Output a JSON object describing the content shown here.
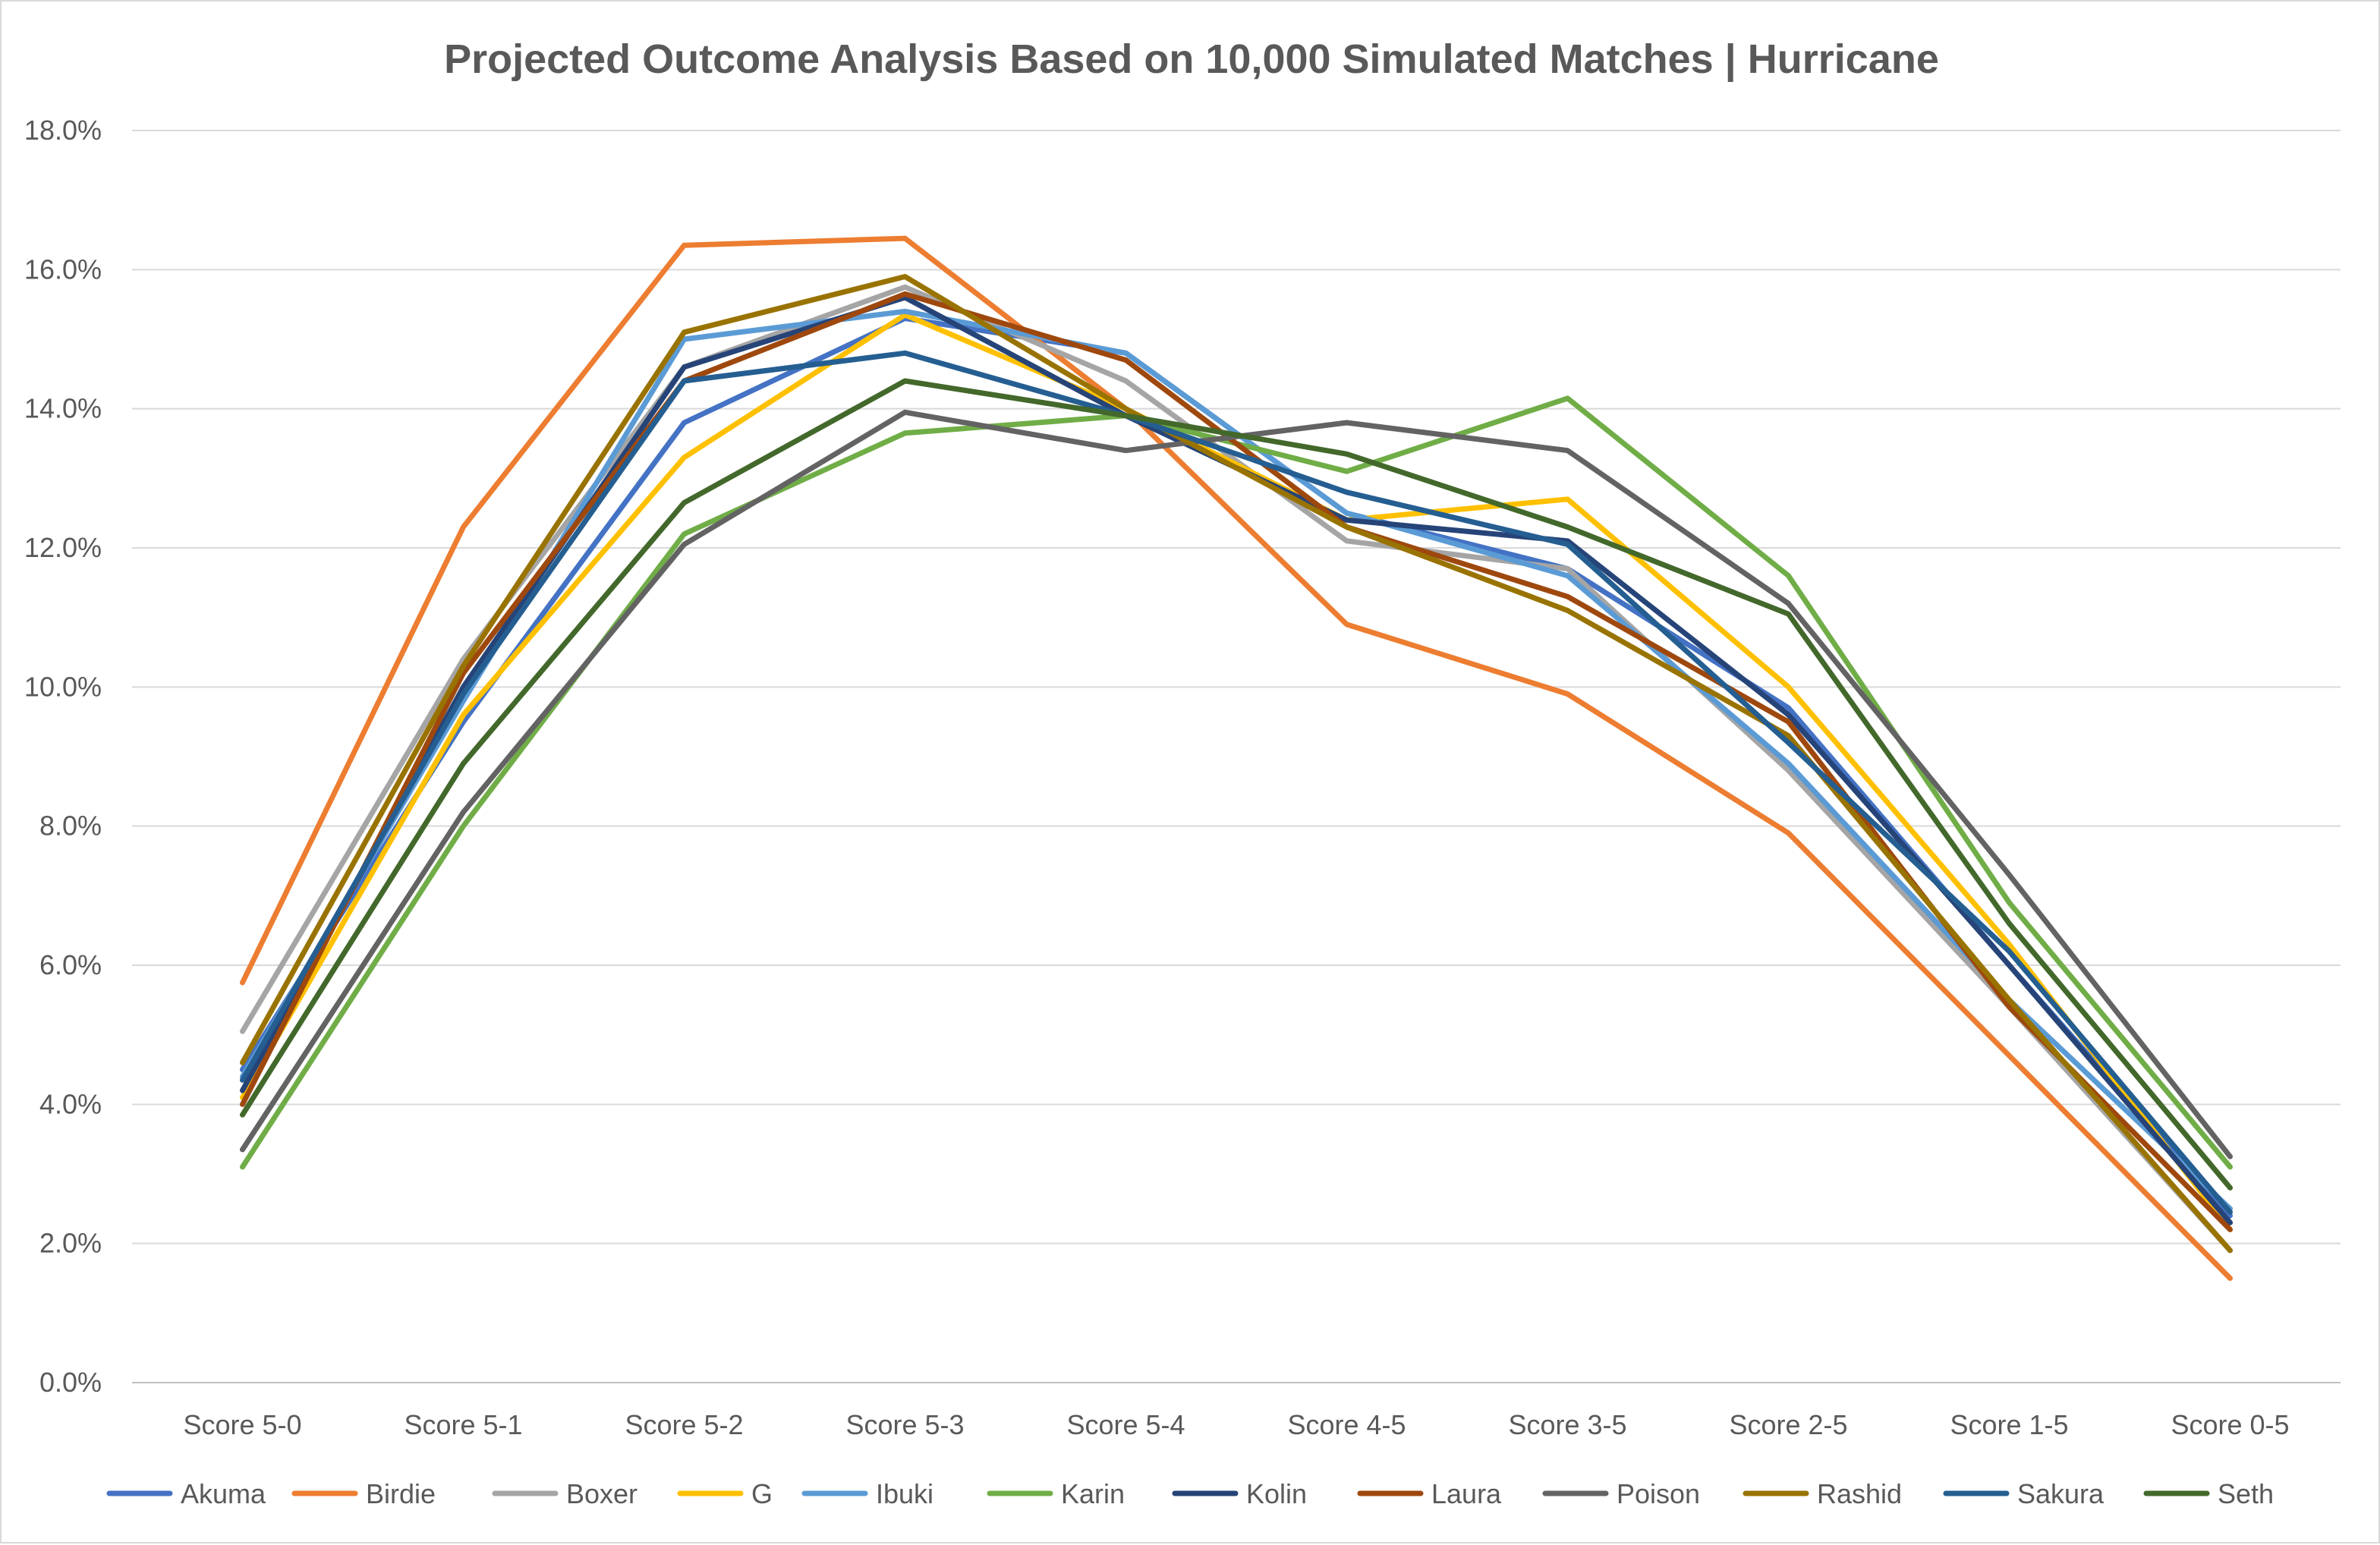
{
  "chart_data": {
    "type": "line",
    "title": "Projected Outcome Analysis Based on 10,000 Simulated Matches | Hurricane",
    "xlabel": "",
    "ylabel": "",
    "ylim": [
      0,
      18
    ],
    "yticks": [
      "0.0%",
      "2.0%",
      "4.0%",
      "6.0%",
      "8.0%",
      "10.0%",
      "12.0%",
      "14.0%",
      "16.0%",
      "18.0%"
    ],
    "grid": true,
    "legend_position": "bottom",
    "categories": [
      "Score 5-0",
      "Score 5-1",
      "Score 5-2",
      "Score 5-3",
      "Score 5-4",
      "Score 4-5",
      "Score 3-5",
      "Score 2-5",
      "Score 1-5",
      "Score 0-5"
    ],
    "series": [
      {
        "name": "Akuma",
        "color": "#4472C4",
        "values": [
          4.5,
          9.5,
          13.8,
          15.3,
          14.8,
          12.5,
          11.7,
          9.7,
          6.0,
          2.4
        ]
      },
      {
        "name": "Birdie",
        "color": "#ED7D31",
        "values": [
          5.75,
          12.3,
          16.35,
          16.45,
          14.0,
          10.9,
          9.9,
          7.9,
          4.7,
          1.5
        ]
      },
      {
        "name": "Boxer",
        "color": "#A5A5A5",
        "values": [
          5.05,
          10.4,
          14.6,
          15.75,
          14.4,
          12.1,
          11.7,
          8.8,
          5.4,
          1.9
        ]
      },
      {
        "name": "G",
        "color": "#FFC000",
        "values": [
          4.1,
          9.6,
          13.3,
          15.35,
          14.0,
          12.4,
          12.7,
          10.0,
          6.3,
          2.2
        ]
      },
      {
        "name": "Ibuki",
        "color": "#5B9BD5",
        "values": [
          4.4,
          9.8,
          15.0,
          15.4,
          14.8,
          12.5,
          11.6,
          8.9,
          5.5,
          2.5
        ]
      },
      {
        "name": "Karin",
        "color": "#70AD47",
        "values": [
          3.1,
          8.0,
          12.2,
          13.65,
          13.9,
          13.1,
          14.15,
          11.6,
          6.9,
          3.1
        ]
      },
      {
        "name": "Kolin",
        "color": "#264478",
        "values": [
          4.2,
          10.0,
          14.6,
          15.6,
          13.9,
          12.4,
          12.1,
          9.6,
          6.0,
          2.3
        ]
      },
      {
        "name": "Laura",
        "color": "#9E480E",
        "values": [
          4.0,
          10.2,
          14.4,
          15.65,
          14.7,
          12.3,
          11.3,
          9.5,
          5.4,
          2.2
        ]
      },
      {
        "name": "Poison",
        "color": "#636363",
        "values": [
          3.35,
          8.2,
          12.05,
          13.95,
          13.4,
          13.8,
          13.4,
          11.2,
          7.3,
          3.25
        ]
      },
      {
        "name": "Rashid",
        "color": "#997300",
        "values": [
          4.6,
          10.3,
          15.1,
          15.9,
          14.0,
          12.3,
          11.1,
          9.3,
          5.5,
          1.9
        ]
      },
      {
        "name": "Sakura",
        "color": "#255E91",
        "values": [
          4.35,
          9.9,
          14.4,
          14.8,
          13.9,
          12.8,
          12.05,
          9.2,
          6.2,
          2.45
        ]
      },
      {
        "name": "Seth",
        "color": "#43682B",
        "values": [
          3.85,
          8.9,
          12.65,
          14.4,
          13.9,
          13.35,
          12.3,
          11.05,
          6.6,
          2.8
        ]
      }
    ]
  }
}
